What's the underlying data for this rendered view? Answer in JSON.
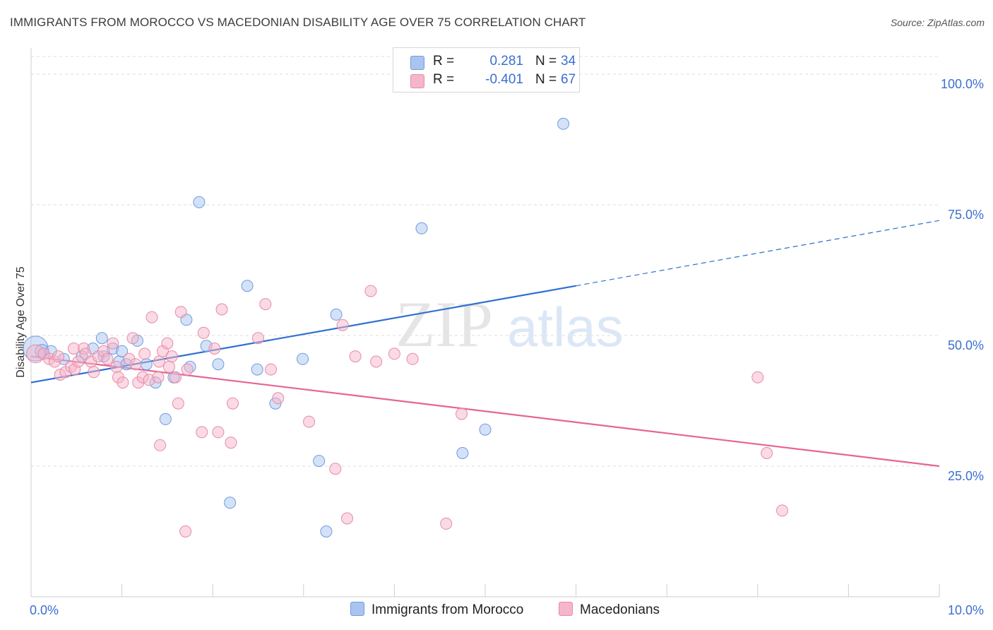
{
  "title": "IMMIGRANTS FROM MOROCCO VS MACEDONIAN DISABILITY AGE OVER 75 CORRELATION CHART",
  "source": "Source: ZipAtlas.com",
  "watermark": {
    "zip": "ZIP",
    "atlas": "atlas"
  },
  "legend": {
    "series1": {
      "r_label": "R =",
      "r_value": "0.281",
      "n_label": "N =",
      "n_value": "34"
    },
    "series2": {
      "r_label": "R =",
      "r_value": "-0.401",
      "n_label": "N =",
      "n_value": "67"
    }
  },
  "bottom_legend": {
    "series1": "Immigrants from Morocco",
    "series2": "Macedonians"
  },
  "colors": {
    "blue_fill": "#a9c5ef",
    "blue_stroke": "#6f9ae0",
    "blue_line": "#2f6fd1",
    "pink_fill": "#f6b6ca",
    "pink_stroke": "#e88aa8",
    "pink_line": "#e56593",
    "tick_text": "#3b6fd0",
    "grid": "#dddddd"
  },
  "chart_data": {
    "type": "scatter",
    "title": "IMMIGRANTS FROM MOROCCO VS MACEDONIAN DISABILITY AGE OVER 75 CORRELATION CHART",
    "xlabel": "",
    "ylabel": "Disability Age Over 75",
    "xlim": [
      0,
      10
    ],
    "ylim": [
      0,
      105
    ],
    "x_tick_labels": [
      {
        "value": 0,
        "label": "0.0%"
      },
      {
        "value": 10,
        "label": "10.0%"
      }
    ],
    "y_tick_labels": [
      {
        "value": 25,
        "label": "25.0%"
      },
      {
        "value": 50,
        "label": "50.0%"
      },
      {
        "value": 75,
        "label": "75.0%"
      },
      {
        "value": 100,
        "label": "100.0%"
      }
    ],
    "x_minor_ticks": [
      0,
      1,
      2,
      3,
      4,
      5,
      6,
      7,
      8,
      9,
      10
    ],
    "series": [
      {
        "name": "Immigrants from Morocco",
        "color": "blue",
        "regression": {
          "x0": 0,
          "y0": 41.0,
          "x1": 6.0,
          "y1": 59.5,
          "dash_x1": 10,
          "dash_y1": 72.0
        },
        "points": [
          [
            0.05,
            47.5,
            2.2
          ],
          [
            0.12,
            47.0,
            1.2
          ],
          [
            0.22,
            47.0,
            1.0
          ],
          [
            0.36,
            45.5,
            1.0
          ],
          [
            0.56,
            46.0,
            1.0
          ],
          [
            0.68,
            47.5,
            1.0
          ],
          [
            0.78,
            49.5,
            1.0
          ],
          [
            0.9,
            47.5,
            1.0
          ],
          [
            0.97,
            45.0,
            1.0
          ],
          [
            1.05,
            44.5,
            1.0
          ],
          [
            1.17,
            49.0,
            1.0
          ],
          [
            1.27,
            44.5,
            1.0
          ],
          [
            1.37,
            41.0,
            1.0
          ],
          [
            1.48,
            34.0,
            1.0
          ],
          [
            1.57,
            42.0,
            1.0
          ],
          [
            1.71,
            53.0,
            1.0
          ],
          [
            1.75,
            44.0,
            1.0
          ],
          [
            1.85,
            75.5,
            1.0
          ],
          [
            1.93,
            48.0,
            1.0
          ],
          [
            2.06,
            44.5,
            1.0
          ],
          [
            2.19,
            18.0,
            1.0
          ],
          [
            2.38,
            59.5,
            1.0
          ],
          [
            2.49,
            43.5,
            1.0
          ],
          [
            2.69,
            37.0,
            1.0
          ],
          [
            2.99,
            45.5,
            1.0
          ],
          [
            3.17,
            26.0,
            1.0
          ],
          [
            3.25,
            12.5,
            1.0
          ],
          [
            3.36,
            54.0,
            1.0
          ],
          [
            4.3,
            70.5,
            1.0
          ],
          [
            4.75,
            27.5,
            1.0
          ],
          [
            5.0,
            32.0,
            1.0
          ],
          [
            5.86,
            90.5,
            1.0
          ],
          [
            1.0,
            47.0,
            1.0
          ],
          [
            0.8,
            46.0,
            1.0
          ]
        ]
      },
      {
        "name": "Macedonians",
        "color": "pink",
        "regression": {
          "x0": 0,
          "y0": 46.0,
          "x1": 10,
          "y1": 25.0
        },
        "points": [
          [
            0.05,
            46.5,
            1.6
          ],
          [
            0.14,
            46.5,
            1.0
          ],
          [
            0.2,
            45.5,
            1.0
          ],
          [
            0.26,
            45.0,
            1.0
          ],
          [
            0.3,
            46.0,
            1.0
          ],
          [
            0.32,
            42.5,
            1.0
          ],
          [
            0.38,
            43.0,
            1.0
          ],
          [
            0.44,
            44.0,
            1.0
          ],
          [
            0.48,
            43.5,
            1.0
          ],
          [
            0.52,
            45.0,
            1.0
          ],
          [
            0.47,
            47.5,
            1.0
          ],
          [
            0.58,
            47.5,
            1.0
          ],
          [
            0.6,
            46.5,
            1.0
          ],
          [
            0.66,
            45.0,
            1.0
          ],
          [
            0.69,
            43.0,
            1.0
          ],
          [
            0.74,
            46.0,
            1.0
          ],
          [
            0.8,
            47.0,
            1.0
          ],
          [
            0.84,
            45.5,
            1.0
          ],
          [
            0.9,
            48.5,
            1.0
          ],
          [
            0.94,
            44.0,
            1.0
          ],
          [
            0.96,
            42.0,
            1.0
          ],
          [
            1.01,
            41.0,
            1.0
          ],
          [
            1.08,
            45.5,
            1.0
          ],
          [
            1.12,
            49.5,
            1.0
          ],
          [
            1.15,
            44.5,
            1.0
          ],
          [
            1.18,
            41.0,
            1.0
          ],
          [
            1.25,
            46.5,
            1.0
          ],
          [
            1.23,
            42.0,
            1.0
          ],
          [
            1.3,
            41.5,
            1.0
          ],
          [
            1.33,
            53.5,
            1.0
          ],
          [
            1.4,
            42.0,
            1.0
          ],
          [
            1.45,
            47.0,
            1.0
          ],
          [
            1.5,
            48.5,
            1.0
          ],
          [
            1.41,
            45.0,
            1.0
          ],
          [
            1.55,
            46.0,
            1.0
          ],
          [
            1.59,
            42.0,
            1.0
          ],
          [
            1.62,
            37.0,
            1.0
          ],
          [
            1.65,
            54.5,
            1.0
          ],
          [
            1.7,
            12.5,
            1.0
          ],
          [
            1.72,
            43.5,
            1.0
          ],
          [
            1.52,
            44.0,
            1.0
          ],
          [
            1.42,
            29.0,
            1.0
          ],
          [
            1.88,
            31.5,
            1.0
          ],
          [
            1.9,
            50.5,
            1.0
          ],
          [
            2.02,
            47.5,
            1.0
          ],
          [
            2.1,
            55.0,
            1.0
          ],
          [
            2.22,
            37.0,
            1.0
          ],
          [
            2.06,
            31.5,
            1.0
          ],
          [
            2.2,
            29.5,
            1.0
          ],
          [
            2.5,
            49.5,
            1.0
          ],
          [
            2.58,
            56.0,
            1.0
          ],
          [
            2.64,
            43.5,
            1.0
          ],
          [
            2.72,
            38.0,
            1.0
          ],
          [
            3.06,
            33.5,
            1.0
          ],
          [
            3.35,
            24.5,
            1.0
          ],
          [
            3.43,
            52.0,
            1.0
          ],
          [
            3.57,
            46.0,
            1.0
          ],
          [
            3.74,
            58.5,
            1.0
          ],
          [
            3.8,
            45.0,
            1.0
          ],
          [
            3.48,
            15.0,
            1.0
          ],
          [
            4.0,
            46.5,
            1.0
          ],
          [
            4.2,
            45.5,
            1.0
          ],
          [
            4.57,
            14.0,
            1.0
          ],
          [
            4.74,
            35.0,
            1.0
          ],
          [
            8.0,
            42.0,
            1.0
          ],
          [
            8.1,
            27.5,
            1.0
          ],
          [
            8.27,
            16.5,
            1.0
          ]
        ]
      }
    ]
  }
}
